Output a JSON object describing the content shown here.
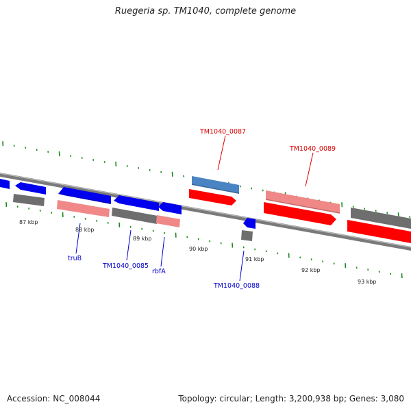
{
  "title": "Ruegeria sp. TM1040, complete genome",
  "accession": "Accession: NC_008044",
  "summary": "Topology: circular; Length: 3,200,938 bp; Genes: 3,080",
  "colors": {
    "backbone": "#777777",
    "ticks": "#1a8a1a",
    "forward_gene": "#ff0000",
    "forward_gene_light": "#f08888",
    "reverse_gene": "#0000ee",
    "reverse_gene_light": "#f08888",
    "steelblue_gene": "#4a84c2",
    "other": "#6e6e6e",
    "red_label": "#dd0000",
    "blue_label": "#0000cc"
  },
  "kbp_labels": [
    {
      "id": "87",
      "text": "87 kbp"
    },
    {
      "id": "88",
      "text": "88 kbp"
    },
    {
      "id": "89",
      "text": "89 kbp"
    },
    {
      "id": "90",
      "text": "90 kbp"
    },
    {
      "id": "91",
      "text": "91 kbp"
    },
    {
      "id": "92",
      "text": "92 kbp"
    },
    {
      "id": "93",
      "text": "93 kbp"
    }
  ],
  "gene_labels": [
    {
      "id": "TM1040_0087",
      "text": "TM1040_0087",
      "color": "red"
    },
    {
      "id": "TM1040_0089",
      "text": "TM1040_0089",
      "color": "red"
    },
    {
      "id": "truB",
      "text": "truB",
      "color": "blue"
    },
    {
      "id": "TM1040_0085",
      "text": "TM1040_0085",
      "color": "blue"
    },
    {
      "id": "rbfA",
      "text": "rbfA",
      "color": "blue"
    },
    {
      "id": "TM1040_0088",
      "text": "TM1040_0088",
      "color": "blue"
    }
  ]
}
